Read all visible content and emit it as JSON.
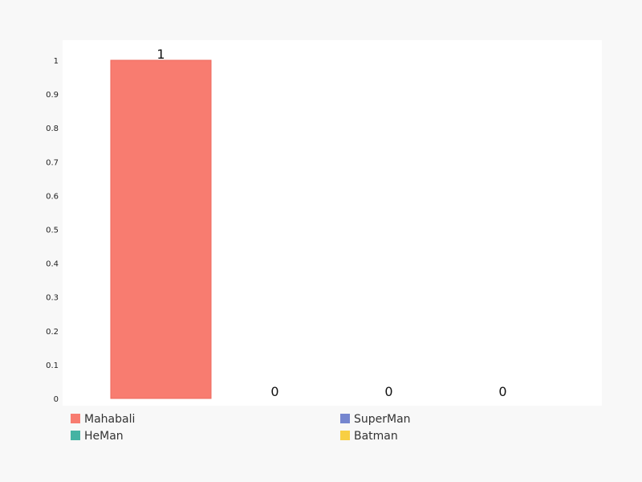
{
  "chart_data": {
    "type": "bar",
    "categories": [
      "Mahabali",
      "HeMan",
      "SuperMan",
      "Batman"
    ],
    "values": [
      1,
      0,
      0,
      0
    ],
    "data_labels": [
      "1",
      "0",
      "0",
      "0"
    ],
    "colors": [
      "#f87c70",
      "#44b3a3",
      "#7586cf",
      "#f8cf43"
    ],
    "ylim": [
      0,
      1
    ],
    "yticks": [
      0,
      0.1,
      0.2,
      0.3,
      0.4,
      0.5,
      0.6,
      0.7,
      0.8,
      0.9,
      1
    ],
    "ytick_labels": [
      "0",
      "0.1",
      "0.2",
      "0.3",
      "0.4",
      "0.5",
      "0.6",
      "0.7",
      "0.8",
      "0.9",
      "1"
    ],
    "grid": false,
    "legend": {
      "placement": "bottom",
      "entries": [
        {
          "label": "Mahabali",
          "color": "#f87c70"
        },
        {
          "label": "HeMan",
          "color": "#44b3a3"
        },
        {
          "label": "SuperMan",
          "color": "#7586cf"
        },
        {
          "label": "Batman",
          "color": "#f8cf43"
        }
      ]
    }
  }
}
